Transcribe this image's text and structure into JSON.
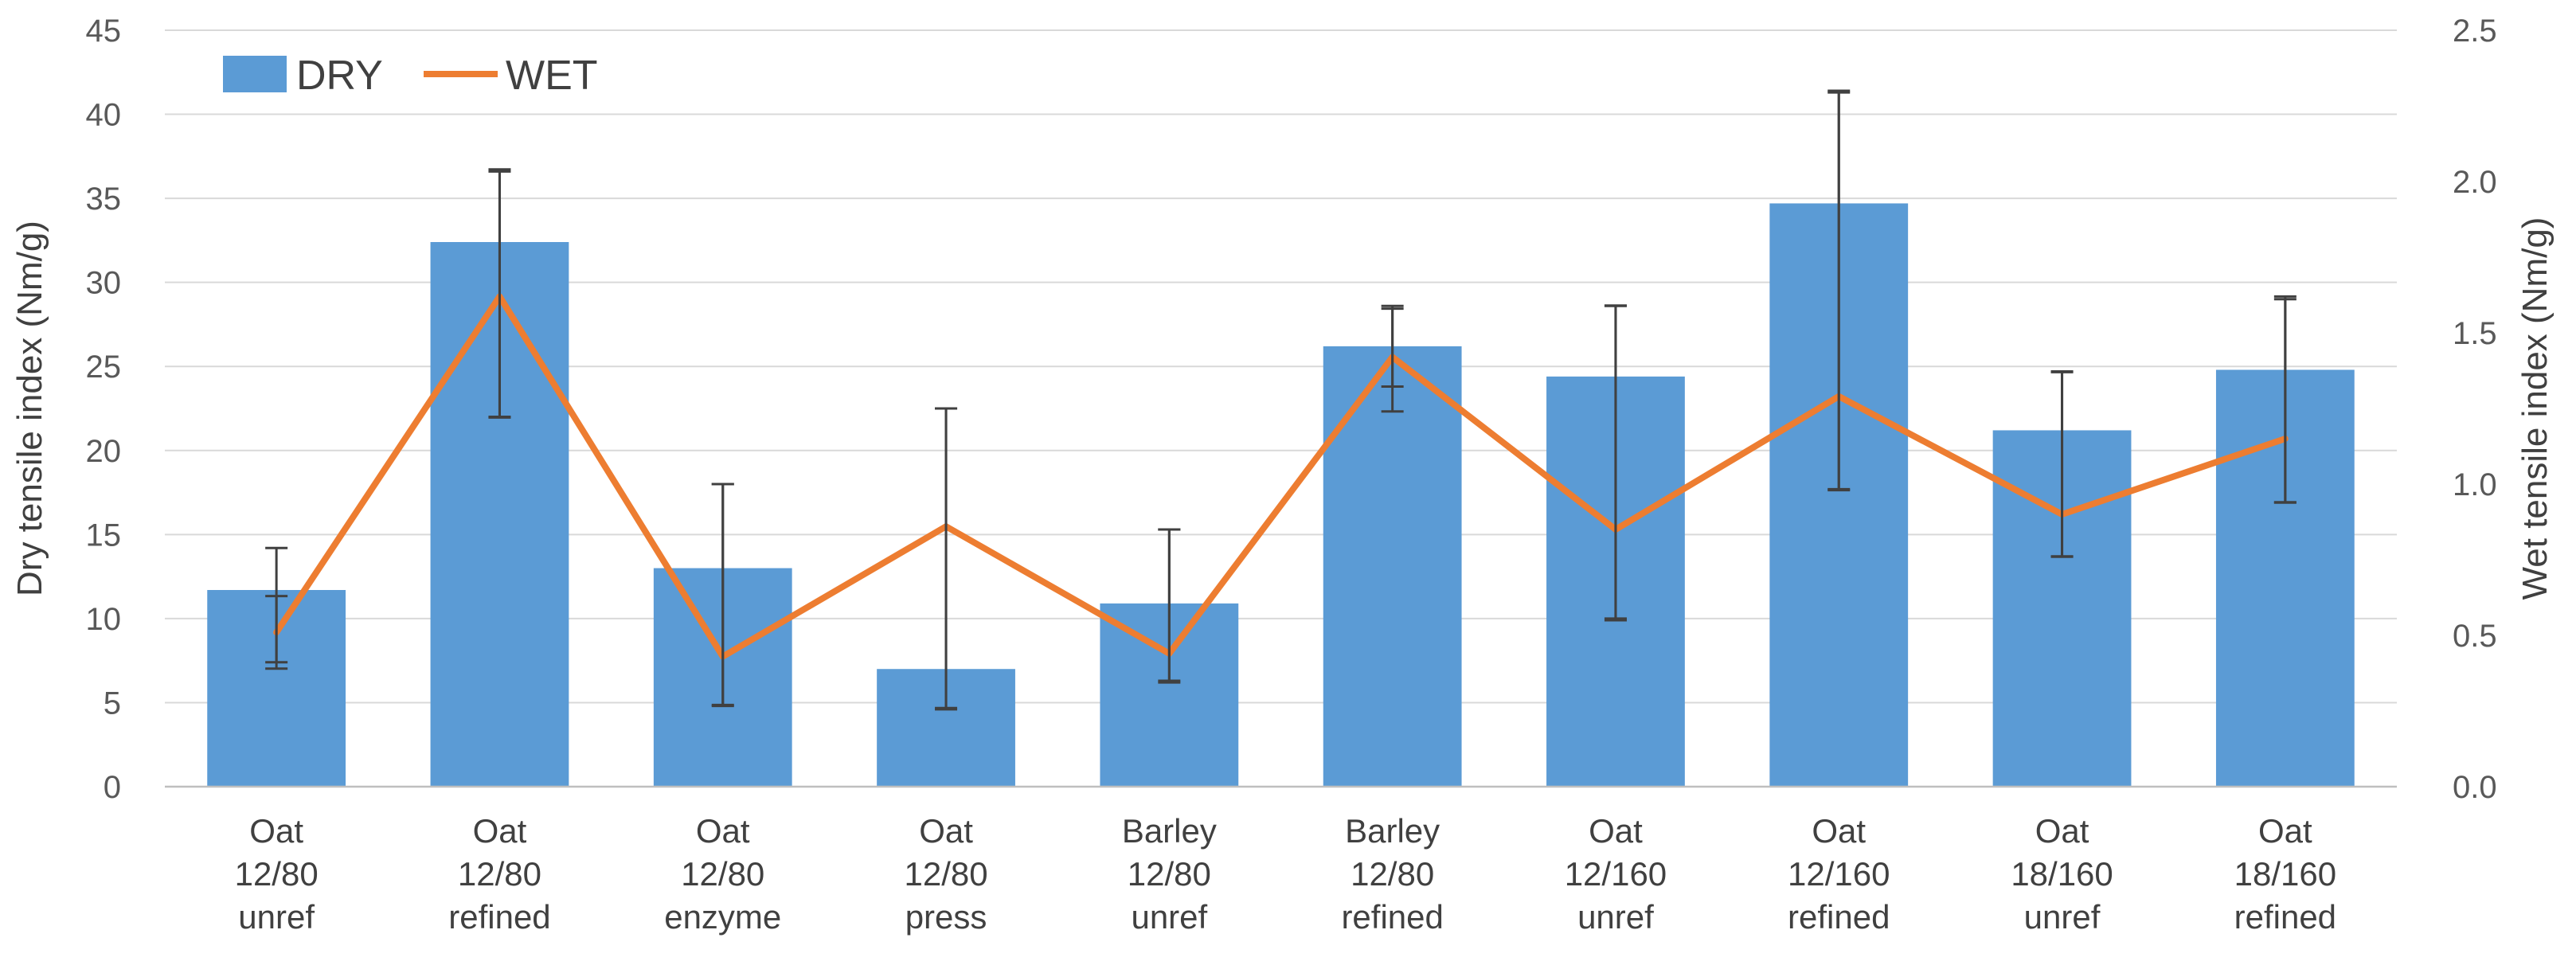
{
  "chart_data": {
    "type": "bar",
    "categories": [
      [
        "Oat",
        "12/80",
        "unref"
      ],
      [
        "Oat",
        "12/80",
        "refined"
      ],
      [
        "Oat",
        "12/80",
        "enzyme"
      ],
      [
        "Oat",
        "12/80",
        "press"
      ],
      [
        "Barley",
        "12/80",
        "unref"
      ],
      [
        "Barley",
        "12/80",
        "refined"
      ],
      [
        "Oat",
        "12/160",
        "unref"
      ],
      [
        "Oat",
        "12/160",
        "refined"
      ],
      [
        "Oat",
        "18/160",
        "unref"
      ],
      [
        "Oat",
        "18/160",
        "refined"
      ]
    ],
    "series": [
      {
        "name": "DRY",
        "type": "bar",
        "axis": "left",
        "color": "#5b9bd5",
        "values": [
          11.7,
          32.4,
          13.0,
          7.0,
          10.9,
          26.2,
          24.4,
          34.7,
          21.2,
          24.8
        ],
        "error_low": [
          7.4,
          22.0,
          4.8,
          4.6,
          6.2,
          23.8,
          10.0,
          17.7,
          13.7,
          16.9
        ],
        "error_high": [
          14.2,
          36.6,
          18.0,
          22.5,
          15.3,
          28.6,
          28.6,
          41.3,
          24.7,
          29.0
        ]
      },
      {
        "name": "WET",
        "type": "line",
        "axis": "right",
        "color": "#ed7d31",
        "values": [
          0.51,
          1.62,
          0.43,
          0.86,
          0.44,
          1.42,
          0.85,
          1.29,
          0.9,
          1.15
        ],
        "error_low": [
          0.39,
          1.22,
          0.27,
          0.26,
          0.35,
          1.24,
          0.55,
          0.98,
          0.76,
          0.94
        ],
        "error_high": [
          0.63,
          2.04,
          1.0,
          1.25,
          0.85,
          1.58,
          1.59,
          2.3,
          1.37,
          1.62
        ]
      }
    ],
    "ylabel": "Dry tensile index (Nm/g)",
    "y2label": "Wet tensile index (Nm/g)",
    "ylim": [
      0,
      45
    ],
    "y2lim": [
      0,
      2.5
    ],
    "yticks": [
      "0",
      "5",
      "10",
      "15",
      "20",
      "25",
      "30",
      "35",
      "40",
      "45"
    ],
    "y2ticks": [
      "0.0",
      "0.5",
      "1.0",
      "1.5",
      "2.0",
      "2.5"
    ],
    "grid": true,
    "legend_position": "top-left"
  }
}
